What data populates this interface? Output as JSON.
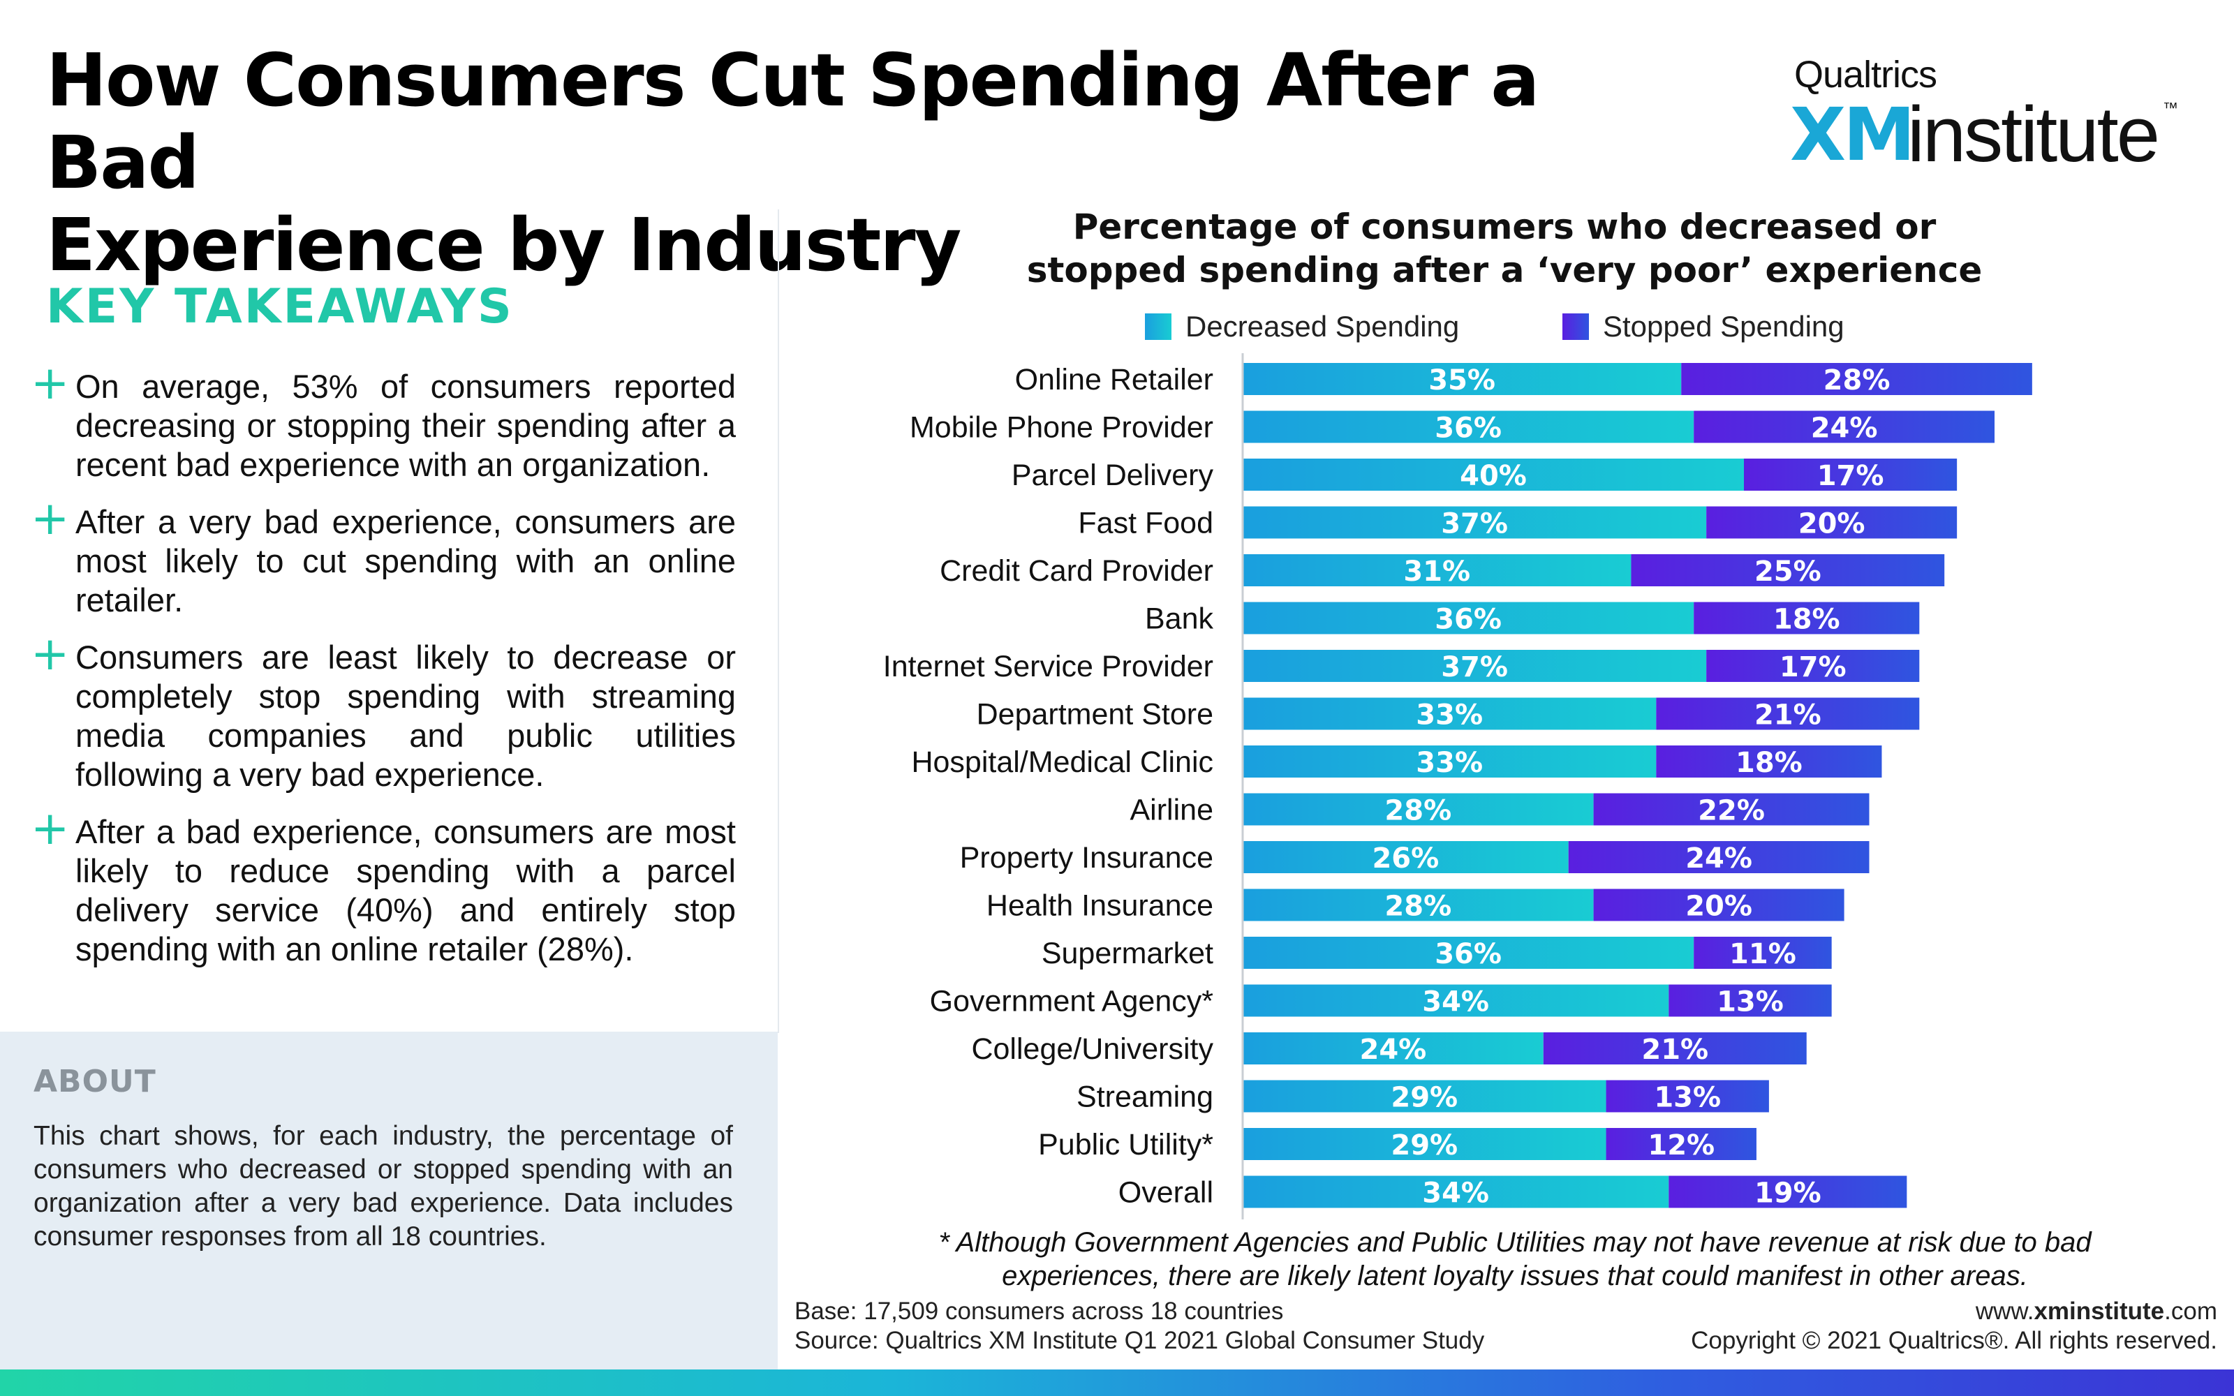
{
  "header": {
    "title_line1": "How Consumers Cut Spending After a Bad",
    "title_line2": "Experience by Industry"
  },
  "logo": {
    "brand_small": "Qualtrics",
    "brand_xm": "XM",
    "brand_institute": "institute",
    "trademark": "™"
  },
  "takeaways": {
    "heading": "KEY TAKEAWAYS",
    "plus_glyph": "+",
    "items": [
      "On average, 53% of consumers reported decreasing or stopping their spending after a recent bad experience with an organization.",
      "After a very bad experience, consumers are most likely to cut spending with an online retailer.",
      "Consumers are least likely to decrease or completely stop spending with streaming media companies and public utilities following a very bad experience.",
      "After a bad experience, consumers are most likely to reduce spending with a parcel delivery service (40%) and entirely stop spending with an online retailer (28%)."
    ]
  },
  "about": {
    "heading": "ABOUT",
    "text": "This chart shows, for each industry, the percentage of consumers who decreased or stopped spending with an organization after a very bad experience. Data includes consumer responses from all 18 countries."
  },
  "colors": {
    "accent_green": "#21c7a8",
    "decreased_start": "#1a9fde",
    "decreased_end": "#19ccd3",
    "stopped_start": "#5a1fe0",
    "stopped_end": "#2f55e0"
  },
  "chart_data": {
    "type": "bar",
    "orientation": "horizontal",
    "stacked": true,
    "title_line1": "Percentage of consumers who decreased or",
    "title_line2": "stopped spending after a ‘very poor’ experience",
    "xlabel": "",
    "ylabel": "",
    "xlim": [
      0,
      64
    ],
    "grid": false,
    "legend": "top",
    "categories": [
      "Online Retailer",
      "Mobile Phone Provider",
      "Parcel Delivery",
      "Fast Food",
      "Credit Card Provider",
      "Bank",
      "Internet Service Provider",
      "Department Store",
      "Hospital/Medical Clinic",
      "Airline",
      "Property Insurance",
      "Health Insurance",
      "Supermarket",
      "Government Agency*",
      "College/University",
      "Streaming",
      "Public Utility*",
      "Overall"
    ],
    "series": [
      {
        "name": "Decreased Spending",
        "values": [
          35,
          36,
          40,
          37,
          31,
          36,
          37,
          33,
          33,
          28,
          26,
          28,
          36,
          34,
          24,
          29,
          29,
          34
        ],
        "labels": [
          "35%",
          "36%",
          "40%",
          "37%",
          "31%",
          "36%",
          "37%",
          "33%",
          "33%",
          "28%",
          "26%",
          "28%",
          "36%",
          "34%",
          "24%",
          "29%",
          "29%",
          "34%"
        ]
      },
      {
        "name": "Stopped Spending",
        "values": [
          28,
          24,
          17,
          20,
          25,
          18,
          17,
          21,
          18,
          22,
          24,
          20,
          11,
          13,
          21,
          13,
          12,
          19
        ],
        "labels": [
          "28%",
          "24%",
          "17%",
          "20%",
          "25%",
          "18%",
          "17%",
          "21%",
          "18%",
          "22%",
          "24%",
          "20%",
          "11%",
          "13%",
          "21%",
          "13%",
          "12%",
          "19%"
        ]
      }
    ]
  },
  "footnote": {
    "line1": "* Although Government Agencies and Public Utilities may not have revenue at risk due to bad",
    "line2": "experiences, there are likely latent loyalty issues that could manifest in other areas."
  },
  "footer": {
    "base": "Base: 17,509 consumers across 18 countries",
    "source": "Source: Qualtrics XM Institute Q1 2021 Global Consumer Study",
    "site_prefix": "www.",
    "site_bold": "xminstitute",
    "site_suffix": ".com",
    "copyright": "Copyright © 2021 Qualtrics®. All rights reserved."
  }
}
